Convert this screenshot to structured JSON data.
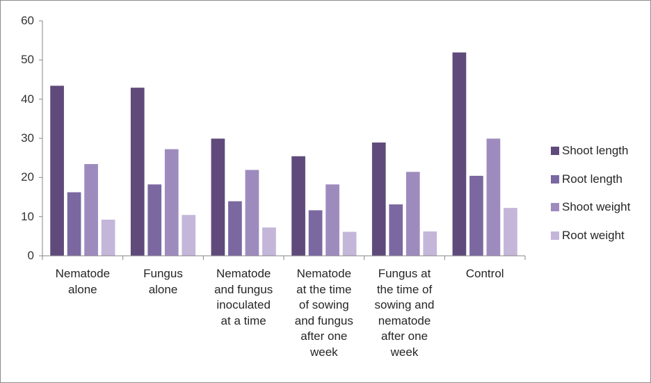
{
  "chart_data": {
    "type": "bar",
    "categories": [
      [
        "Nematode",
        "alone"
      ],
      [
        "Fungus",
        "alone"
      ],
      [
        "Nematode",
        "and fungus",
        "inoculated",
        "at a time"
      ],
      [
        "Nematode",
        "at the time",
        "of sowing",
        "and fungus",
        "after one",
        "week"
      ],
      [
        "Fungus at",
        "the time of",
        "sowing and",
        "nematode",
        "after one",
        "week"
      ],
      [
        "Control"
      ]
    ],
    "series": [
      {
        "name": "Shoot length",
        "color": "#604a7b",
        "values": [
          43.5,
          43,
          30,
          25.5,
          29,
          52
        ]
      },
      {
        "name": "Root length",
        "color": "#7b68a1",
        "values": [
          16.3,
          18.3,
          14,
          11.7,
          13.2,
          20.5
        ]
      },
      {
        "name": "Shoot weight",
        "color": "#9e8bbe",
        "values": [
          23.5,
          27.3,
          22,
          18.3,
          21.5,
          30
        ]
      },
      {
        "name": "Root weight",
        "color": "#c4b6d9",
        "values": [
          9.3,
          10.5,
          7.3,
          6.2,
          6.3,
          12.3
        ]
      }
    ],
    "ylim": [
      0,
      60
    ],
    "yticks": [
      0,
      10,
      20,
      30,
      40,
      50,
      60
    ],
    "grid": false,
    "legend_position": "right"
  }
}
